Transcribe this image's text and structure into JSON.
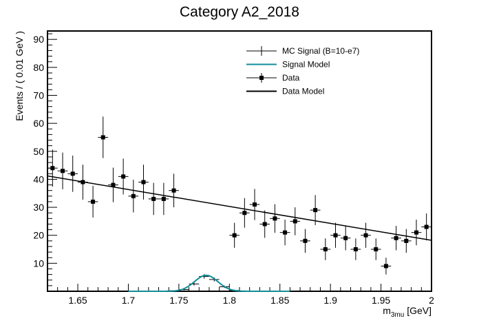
{
  "chart_data": {
    "type": "scatter",
    "title": "Category A2_2018",
    "xlabel_main": "m",
    "xlabel_sub": "3mu",
    "xlabel_unit": " [GeV]",
    "ylabel": "Events / ( 0.01 GeV )",
    "xlim": [
      1.62,
      2.0
    ],
    "ylim": [
      0,
      93
    ],
    "xticks": [
      1.65,
      1.7,
      1.75,
      1.8,
      1.85,
      1.9,
      1.95,
      2.0
    ],
    "xtick_labels": [
      "1.65",
      "1.7",
      "1.75",
      "1.8",
      "1.85",
      "1.9",
      "1.95",
      "2"
    ],
    "yticks": [
      10,
      20,
      30,
      40,
      50,
      60,
      70,
      80,
      90
    ],
    "ytick_labels": [
      "10",
      "20",
      "30",
      "40",
      "50",
      "60",
      "70",
      "80",
      "90"
    ],
    "bin_width": 0.01,
    "legend": {
      "position": "top-right",
      "entries": [
        {
          "label": "MC Signal (B=10-e7)",
          "style": "errorbar",
          "color": "#000000"
        },
        {
          "label": "Signal Model",
          "style": "line",
          "color": "#0f8d9a"
        },
        {
          "label": "Data",
          "style": "marker",
          "color": "#000000"
        },
        {
          "label": "Data Model",
          "style": "line",
          "color": "#000000"
        }
      ]
    },
    "data_series": {
      "name": "Data",
      "x": [
        1.625,
        1.635,
        1.645,
        1.655,
        1.665,
        1.675,
        1.685,
        1.695,
        1.705,
        1.715,
        1.725,
        1.735,
        1.745,
        1.805,
        1.815,
        1.825,
        1.835,
        1.845,
        1.855,
        1.865,
        1.875,
        1.885,
        1.895,
        1.905,
        1.915,
        1.925,
        1.935,
        1.945,
        1.955,
        1.965,
        1.975,
        1.985,
        1.995
      ],
      "y": [
        44,
        43,
        42,
        39,
        32,
        55,
        38,
        41,
        34,
        39,
        33,
        33,
        36,
        20,
        28,
        31,
        24,
        26,
        21,
        25,
        18,
        29,
        15,
        20,
        19,
        15,
        20,
        15,
        9,
        19,
        18,
        21,
        23
      ]
    },
    "data_model": {
      "name": "Data Model",
      "x": [
        1.62,
        2.0
      ],
      "y": [
        41.2,
        18.2
      ]
    },
    "signal_series": {
      "name": "MC Signal (B=10-e7)",
      "x": [
        1.705,
        1.715,
        1.725,
        1.735,
        1.745,
        1.755,
        1.765,
        1.775,
        1.785,
        1.795,
        1.805,
        1.815,
        1.825,
        1.835,
        1.845
      ],
      "y": [
        0.02,
        0.03,
        0.05,
        0.1,
        0.2,
        0.6,
        2.6,
        5.3,
        4.2,
        1.6,
        0.3,
        0.1,
        0.05,
        0.03,
        0.02
      ]
    },
    "signal_model": {
      "name": "Signal Model",
      "mean": 1.777,
      "sigma": 0.0115,
      "amplitude": 5.7,
      "range": [
        1.7,
        1.86
      ]
    }
  }
}
